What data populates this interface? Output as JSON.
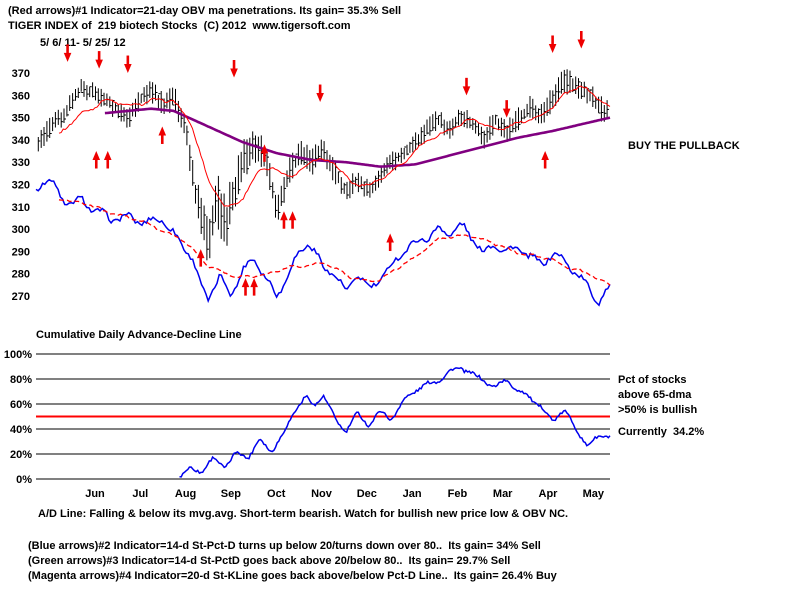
{
  "header": {
    "line1": "(Red arrows)#1 Indicator=21-day OBV ma penetrations. Its gain= 35.3% Sell",
    "line2": "TIGER INDEX of  219 biotech Stocks  (C) 2012  www.tigersoft.com",
    "line3": "5/ 6/ 11- 5/ 25/ 12"
  },
  "annotations": {
    "buy_pullback": "BUY THE PULLBACK",
    "ad_line_label": "Cumulative Daily Advance-Decline Line",
    "pct_label_1": "Pct of stocks",
    "pct_label_2": "above 65-dma",
    "pct_label_3": ">50% is bullish",
    "pct_label_4": "Currently  34.2%",
    "ad_comment": "A/D Line: Falling & below its mvg.avg. Short-term bearish. Watch for bullish new price low & OBV NC."
  },
  "footer": {
    "line1": "(Blue arrows)#2 Indicator=14-d St-Pct-D turns up below 20/turns down over 80..  Its gain= 34% Sell",
    "line2": "(Green arrows)#3 Indicator=14-d St-PctD goes back above 20/below 80..  Its gain= 29.7% Sell",
    "line3": "(Magenta arrows)#4 Indicator=20-d St-KLine goes back above/below Pct-D Line..  Its gain= 26.4% Buy"
  },
  "colors": {
    "price": "#000000",
    "ma_slow": "#800080",
    "ma_fast": "#ff0000",
    "ad": "#0000ee",
    "ad_ma": "#ff0000",
    "pct": "#0000ee",
    "pct_50": "#ff0000",
    "grid": "#000000",
    "arrow": "#ee0000"
  },
  "chart_data": [
    {
      "type": "bar",
      "title": "TIGER INDEX of 219 biotech Stocks",
      "date_range": "5/6/11 - 5/25/12",
      "ylim": [
        264,
        384
      ],
      "yticks": [
        370,
        360,
        350,
        340,
        330,
        320,
        310,
        300,
        290,
        280,
        270
      ],
      "x_months": [
        "Jun",
        "Jul",
        "Aug",
        "Sep",
        "Oct",
        "Nov",
        "Dec",
        "Jan",
        "Feb",
        "Mar",
        "Apr",
        "May"
      ],
      "series": [
        {
          "name": "price-bars",
          "kind": "hlc-bars",
          "color": "#000000",
          "waypoints": [
            [
              0,
              338
            ],
            [
              0.02,
              344
            ],
            [
              0.05,
              352
            ],
            [
              0.08,
              364
            ],
            [
              0.1,
              361
            ],
            [
              0.13,
              356
            ],
            [
              0.16,
              349
            ],
            [
              0.18,
              358
            ],
            [
              0.2,
              362
            ],
            [
              0.22,
              356
            ],
            [
              0.24,
              359
            ],
            [
              0.26,
              347
            ],
            [
              0.28,
              312
            ],
            [
              0.3,
              296
            ],
            [
              0.315,
              314
            ],
            [
              0.33,
              301
            ],
            [
              0.345,
              317
            ],
            [
              0.36,
              328
            ],
            [
              0.38,
              339
            ],
            [
              0.4,
              331
            ],
            [
              0.42,
              309
            ],
            [
              0.44,
              324
            ],
            [
              0.46,
              334
            ],
            [
              0.48,
              330
            ],
            [
              0.5,
              336
            ],
            [
              0.52,
              326
            ],
            [
              0.54,
              317
            ],
            [
              0.56,
              322
            ],
            [
              0.58,
              317
            ],
            [
              0.6,
              324
            ],
            [
              0.62,
              330
            ],
            [
              0.64,
              334
            ],
            [
              0.66,
              339
            ],
            [
              0.68,
              344
            ],
            [
              0.7,
              349
            ],
            [
              0.72,
              344
            ],
            [
              0.74,
              351
            ],
            [
              0.76,
              347
            ],
            [
              0.78,
              341
            ],
            [
              0.8,
              349
            ],
            [
              0.82,
              344
            ],
            [
              0.84,
              349
            ],
            [
              0.86,
              354
            ],
            [
              0.88,
              350
            ],
            [
              0.9,
              359
            ],
            [
              0.92,
              367
            ],
            [
              0.94,
              364
            ],
            [
              0.96,
              361
            ],
            [
              0.98,
              355
            ],
            [
              1,
              352
            ]
          ],
          "volatility": [
            [
              0,
              5
            ],
            [
              0.2,
              5
            ],
            [
              0.26,
              7
            ],
            [
              0.3,
              14
            ],
            [
              0.36,
              12
            ],
            [
              0.42,
              8
            ],
            [
              0.5,
              6
            ],
            [
              0.6,
              5
            ],
            [
              0.75,
              5
            ],
            [
              0.85,
              6
            ],
            [
              1,
              6
            ]
          ]
        },
        {
          "name": "ma-65d",
          "kind": "line",
          "color": "#800080",
          "width": 2.6,
          "noise": 0,
          "phase": 1,
          "start": 0.12,
          "end": 1,
          "waypoints": [
            [
              0.12,
              352
            ],
            [
              0.2,
              354
            ],
            [
              0.24,
              353
            ],
            [
              0.3,
              346
            ],
            [
              0.36,
              339
            ],
            [
              0.42,
              334
            ],
            [
              0.48,
              331
            ],
            [
              0.54,
              330
            ],
            [
              0.6,
              328
            ],
            [
              0.66,
              329
            ],
            [
              0.72,
              333
            ],
            [
              0.78,
              337
            ],
            [
              0.84,
              341
            ],
            [
              0.9,
              344
            ],
            [
              0.95,
              347
            ],
            [
              1,
              350
            ]
          ]
        },
        {
          "name": "ma-21d",
          "kind": "line",
          "color": "#ff0000",
          "width": 1,
          "noise": 1,
          "phase": 2,
          "start": 0.04,
          "end": 1,
          "waypoints": [
            [
              0.04,
              342
            ],
            [
              0.08,
              352
            ],
            [
              0.12,
              358
            ],
            [
              0.16,
              355
            ],
            [
              0.2,
              358
            ],
            [
              0.24,
              357
            ],
            [
              0.27,
              348
            ],
            [
              0.3,
              322
            ],
            [
              0.33,
              309
            ],
            [
              0.36,
              314
            ],
            [
              0.39,
              327
            ],
            [
              0.42,
              326
            ],
            [
              0.45,
              324
            ],
            [
              0.48,
              331
            ],
            [
              0.52,
              330
            ],
            [
              0.55,
              321
            ],
            [
              0.58,
              319
            ],
            [
              0.61,
              324
            ],
            [
              0.64,
              330
            ],
            [
              0.68,
              339
            ],
            [
              0.72,
              345
            ],
            [
              0.76,
              349
            ],
            [
              0.8,
              345
            ],
            [
              0.84,
              347
            ],
            [
              0.88,
              351
            ],
            [
              0.92,
              360
            ],
            [
              0.95,
              364
            ],
            [
              0.98,
              359
            ],
            [
              1,
              355
            ]
          ]
        },
        {
          "name": "ad-line",
          "kind": "line",
          "color": "#0000ee",
          "width": 1.5,
          "noise": 2.4,
          "phase": 3,
          "start": 0,
          "end": 1,
          "waypoints": [
            [
              0,
              318
            ],
            [
              0.02,
              322
            ],
            [
              0.05,
              312
            ],
            [
              0.08,
              314
            ],
            [
              0.1,
              308
            ],
            [
              0.13,
              304
            ],
            [
              0.16,
              307
            ],
            [
              0.19,
              302
            ],
            [
              0.22,
              304
            ],
            [
              0.25,
              296
            ],
            [
              0.27,
              288
            ],
            [
              0.29,
              272
            ],
            [
              0.3,
              268
            ],
            [
              0.32,
              279
            ],
            [
              0.34,
              272
            ],
            [
              0.36,
              281
            ],
            [
              0.38,
              286
            ],
            [
              0.4,
              278
            ],
            [
              0.42,
              271
            ],
            [
              0.44,
              281
            ],
            [
              0.46,
              289
            ],
            [
              0.475,
              293
            ],
            [
              0.5,
              284
            ],
            [
              0.52,
              281
            ],
            [
              0.54,
              271
            ],
            [
              0.56,
              279
            ],
            [
              0.58,
              273
            ],
            [
              0.6,
              279
            ],
            [
              0.62,
              284
            ],
            [
              0.64,
              289
            ],
            [
              0.66,
              293
            ],
            [
              0.68,
              297
            ],
            [
              0.7,
              301
            ],
            [
              0.72,
              297
            ],
            [
              0.74,
              301
            ],
            [
              0.76,
              296
            ],
            [
              0.78,
              291
            ],
            [
              0.8,
              293
            ],
            [
              0.82,
              289
            ],
            [
              0.84,
              291
            ],
            [
              0.86,
              289
            ],
            [
              0.88,
              285
            ],
            [
              0.9,
              288
            ],
            [
              0.92,
              285
            ],
            [
              0.94,
              281
            ],
            [
              0.96,
              276
            ],
            [
              0.98,
              267
            ],
            [
              1,
              273
            ]
          ]
        },
        {
          "name": "ad-ma",
          "kind": "line",
          "color": "#ff0000",
          "width": 1.3,
          "dash": "5,3",
          "noise": 0.8,
          "phase": 4,
          "start": 0.04,
          "end": 1,
          "waypoints": [
            [
              0.04,
              314
            ],
            [
              0.1,
              310
            ],
            [
              0.15,
              306
            ],
            [
              0.2,
              302
            ],
            [
              0.25,
              296
            ],
            [
              0.3,
              284
            ],
            [
              0.35,
              278
            ],
            [
              0.4,
              280
            ],
            [
              0.45,
              283
            ],
            [
              0.5,
              285
            ],
            [
              0.55,
              278
            ],
            [
              0.6,
              277
            ],
            [
              0.65,
              286
            ],
            [
              0.7,
              295
            ],
            [
              0.75,
              298
            ],
            [
              0.8,
              293
            ],
            [
              0.85,
              289
            ],
            [
              0.9,
              286
            ],
            [
              0.95,
              281
            ],
            [
              1,
              275
            ]
          ]
        }
      ],
      "arrows_down": [
        [
          0.055,
          377
        ],
        [
          0.11,
          374
        ],
        [
          0.16,
          372
        ],
        [
          0.345,
          370
        ],
        [
          0.495,
          359
        ],
        [
          0.75,
          362
        ],
        [
          0.82,
          352
        ],
        [
          0.9,
          381
        ],
        [
          0.95,
          383
        ]
      ],
      "arrows_up": [
        [
          0.105,
          333
        ],
        [
          0.125,
          333
        ],
        [
          0.22,
          344
        ],
        [
          0.287,
          289
        ],
        [
          0.365,
          276
        ],
        [
          0.38,
          276
        ],
        [
          0.398,
          336
        ],
        [
          0.432,
          306
        ],
        [
          0.447,
          306
        ],
        [
          0.617,
          296
        ],
        [
          0.887,
          333
        ]
      ]
    },
    {
      "type": "line",
      "title": "Pct of stocks above 65-dma",
      "ylim": [
        0,
        100
      ],
      "yticks": [
        "100%",
        "80%",
        "60%",
        "40%",
        "20%",
        "0%"
      ],
      "gridlines": [
        0,
        20,
        40,
        60,
        80,
        100
      ],
      "hline_bullish": 50,
      "current_value": 34.2,
      "series": [
        {
          "name": "pct-above-65dma",
          "kind": "line",
          "color": "#0000ee",
          "width": 1.5,
          "noise": 2.6,
          "phase": 6,
          "start": 0.25,
          "end": 1,
          "waypoints": [
            [
              0.25,
              3
            ],
            [
              0.27,
              9
            ],
            [
              0.29,
              5
            ],
            [
              0.31,
              16
            ],
            [
              0.33,
              11
            ],
            [
              0.35,
              22
            ],
            [
              0.37,
              17
            ],
            [
              0.39,
              30
            ],
            [
              0.41,
              23
            ],
            [
              0.43,
              36
            ],
            [
              0.45,
              55
            ],
            [
              0.47,
              64
            ],
            [
              0.485,
              58
            ],
            [
              0.5,
              68
            ],
            [
              0.52,
              50
            ],
            [
              0.54,
              38
            ],
            [
              0.56,
              51
            ],
            [
              0.58,
              43
            ],
            [
              0.6,
              55
            ],
            [
              0.62,
              49
            ],
            [
              0.64,
              61
            ],
            [
              0.66,
              70
            ],
            [
              0.68,
              76
            ],
            [
              0.7,
              80
            ],
            [
              0.72,
              85
            ],
            [
              0.74,
              88
            ],
            [
              0.76,
              84
            ],
            [
              0.78,
              80
            ],
            [
              0.8,
              74
            ],
            [
              0.82,
              78
            ],
            [
              0.84,
              70
            ],
            [
              0.86,
              66
            ],
            [
              0.88,
              59
            ],
            [
              0.9,
              45
            ],
            [
              0.92,
              55
            ],
            [
              0.94,
              40
            ],
            [
              0.96,
              29
            ],
            [
              0.98,
              33
            ],
            [
              1,
              34.2
            ]
          ]
        }
      ]
    }
  ]
}
